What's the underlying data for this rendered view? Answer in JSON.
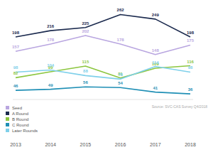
{
  "chart_data": {
    "type": "line",
    "categories": [
      "2013",
      "2014",
      "2015",
      "2016",
      "2017",
      "2018"
    ],
    "series": [
      {
        "name": "Seed",
        "color": "#b9a6e0",
        "values": [
          157,
          178,
          202,
          178,
          148,
          175
        ]
      },
      {
        "name": "A Round",
        "color": "#1b2a4e",
        "values": [
          198,
          216,
          225,
          262,
          249,
          198
        ]
      },
      {
        "name": "B Round",
        "color": "#8cc63f",
        "values": [
          82,
          99,
          115,
          81,
          109,
          116
        ]
      },
      {
        "name": "C Round",
        "color": "#1f8fb5",
        "values": [
          46,
          49,
          56,
          54,
          41,
          36
        ]
      },
      {
        "name": "Later Rounds",
        "color": "#7fd0ea",
        "values": [
          98,
          104,
          88,
          78,
          114,
          98
        ]
      }
    ],
    "annotations": [
      "Source: SVC-CAS Survey Q4/2018"
    ],
    "ylim": [
      20,
      275
    ],
    "grid": false,
    "legend": "bottom-left",
    "data_labels": true,
    "tick_labels": "x"
  }
}
